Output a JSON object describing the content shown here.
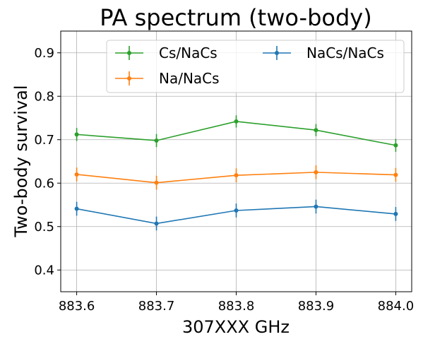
{
  "chart_data": {
    "type": "line",
    "title": "PA spectrum (two-body)",
    "xlabel": "307XXX GHz",
    "ylabel": "Two-body survival",
    "x": [
      883.6,
      883.7,
      883.8,
      883.9,
      884.0
    ],
    "x_tick_labels": [
      "883.6",
      "883.7",
      "883.8",
      "883.9",
      "884.0"
    ],
    "y_ticks": [
      0.4,
      0.5,
      0.6,
      0.7,
      0.8,
      0.9
    ],
    "y_tick_labels": [
      "0.4",
      "0.5",
      "0.6",
      "0.7",
      "0.8",
      "0.9"
    ],
    "xlim": [
      883.58,
      884.02
    ],
    "ylim": [
      0.35,
      0.95
    ],
    "grid": true,
    "legend_position": "top-right",
    "legend_columns": 2,
    "error_bars": true,
    "series": [
      {
        "name": "Cs/NaCs",
        "color": "#2ca02c",
        "values": [
          0.712,
          0.698,
          0.742,
          0.722,
          0.687
        ],
        "errors": [
          0.015,
          0.015,
          0.014,
          0.014,
          0.015
        ]
      },
      {
        "name": "Na/NaCs",
        "color": "#ff7f0e",
        "values": [
          0.62,
          0.601,
          0.618,
          0.625,
          0.619
        ],
        "errors": [
          0.016,
          0.016,
          0.016,
          0.016,
          0.016
        ]
      },
      {
        "name": "NaCs/NaCs",
        "color": "#1f77b4",
        "values": [
          0.541,
          0.507,
          0.537,
          0.546,
          0.529
        ],
        "errors": [
          0.016,
          0.016,
          0.016,
          0.016,
          0.016
        ]
      }
    ]
  }
}
